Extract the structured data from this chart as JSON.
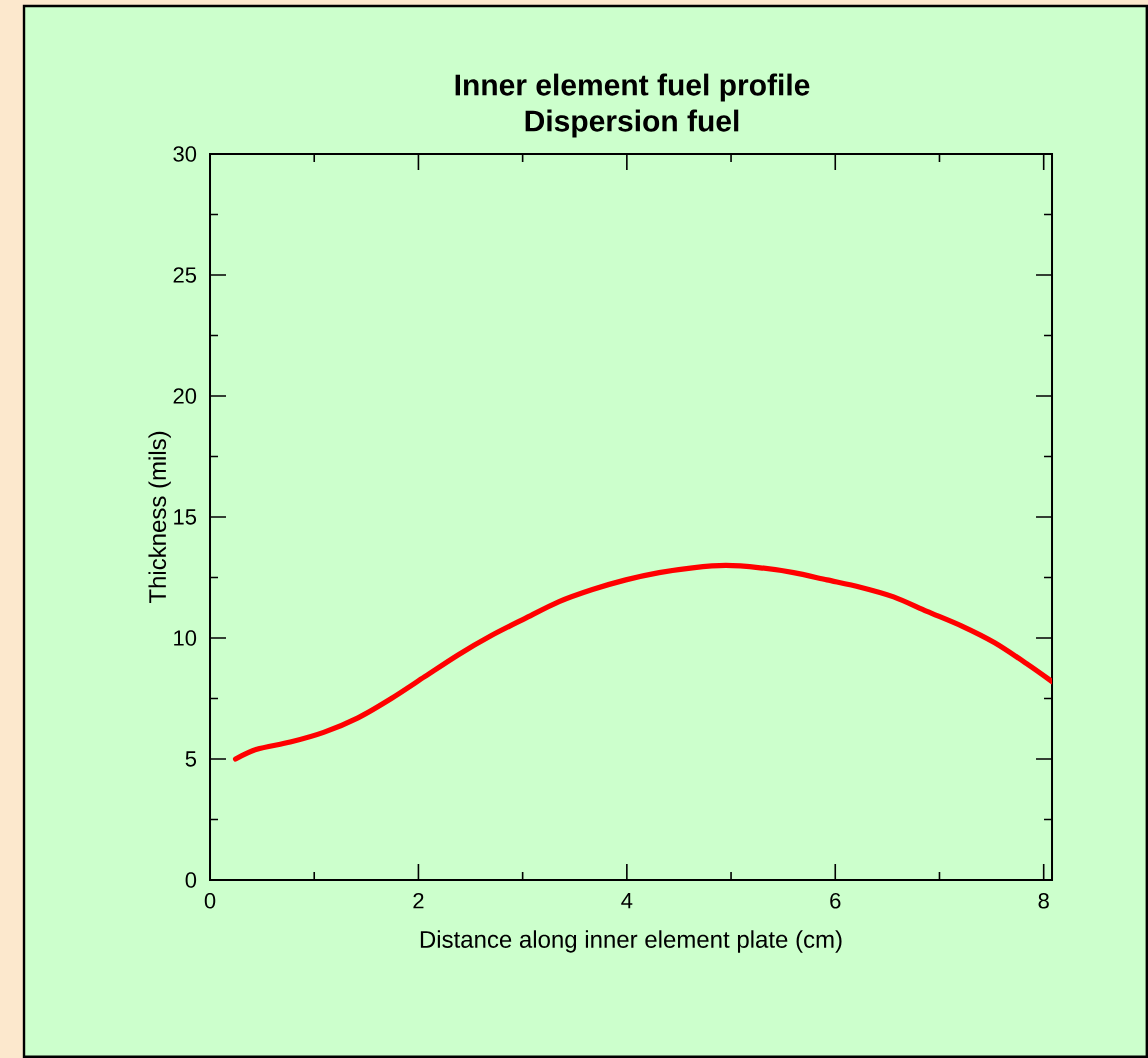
{
  "chart_data": {
    "type": "line",
    "title": "Inner element fuel profile\nDispersion fuel",
    "xlabel": "Distance along inner element plate (cm)",
    "ylabel": "Thickness (mils)",
    "xlim": [
      0,
      8.08
    ],
    "ylim": [
      0,
      30
    ],
    "xticks": [
      0,
      2,
      4,
      6,
      8
    ],
    "yticks": [
      0,
      5,
      10,
      15,
      20,
      25,
      30
    ],
    "grid": false,
    "marker": "none",
    "line_style": "solid",
    "series": [
      {
        "color": "#ff0000",
        "x": [
          0.245,
          0.45,
          0.77,
          1.09,
          1.42,
          1.74,
          2.06,
          2.38,
          2.7,
          3.02,
          3.35,
          3.67,
          3.99,
          4.31,
          4.63,
          4.95,
          5.28,
          5.6,
          5.92,
          6.24,
          6.56,
          6.88,
          7.21,
          7.53,
          7.85,
          8.08
        ],
        "values": [
          5.0,
          5.4,
          5.7,
          6.1,
          6.7,
          7.5,
          8.4,
          9.3,
          10.1,
          10.8,
          11.5,
          12.0,
          12.4,
          12.7,
          12.9,
          13.0,
          12.9,
          12.7,
          12.4,
          12.1,
          11.7,
          11.1,
          10.5,
          9.8,
          8.9,
          8.2
        ]
      }
    ]
  }
}
